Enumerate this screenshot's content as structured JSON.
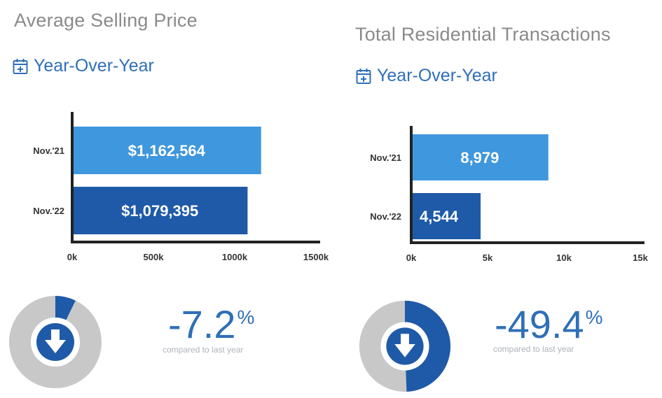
{
  "colors": {
    "bar_light": "#3f97dd",
    "bar_dark": "#1f5aa8",
    "axis": "#222222",
    "donut_bg": "#c8c8c8",
    "accent": "#2f6fb8"
  },
  "panels": [
    {
      "title": "Average Selling Price",
      "yoy_label": "Year-Over-Year",
      "change_value": "-7.2",
      "change_unit": "%",
      "compare_label": "compared to last year",
      "donut_fraction": 0.072
    },
    {
      "title": "Total Residential Transactions",
      "yoy_label": "Year-Over-Year",
      "change_value": "-49.4",
      "change_unit": "%",
      "compare_label": "compared to last year",
      "donut_fraction": 0.494
    }
  ],
  "chart_data": [
    {
      "type": "bar",
      "orientation": "horizontal",
      "title": "Average Selling Price",
      "categories": [
        "Nov.'21",
        "Nov.'22"
      ],
      "values": [
        1162564,
        1079395
      ],
      "data_labels": [
        "$1,162,564",
        "$1,079,395"
      ],
      "xlim": [
        0,
        1500000
      ],
      "xticks": [
        0,
        500000,
        1000000,
        1500000
      ],
      "xtick_labels": [
        "0k",
        "500k",
        "1000k",
        "1500k"
      ],
      "xlabel": "",
      "ylabel": ""
    },
    {
      "type": "bar",
      "orientation": "horizontal",
      "title": "Total Residential Transactions",
      "categories": [
        "Nov.'21",
        "Nov.'22"
      ],
      "values": [
        8979,
        4544
      ],
      "data_labels": [
        "8,979",
        "4,544"
      ],
      "xlim": [
        0,
        15000
      ],
      "xticks": [
        0,
        5000,
        10000,
        15000
      ],
      "xtick_labels": [
        "0k",
        "5k",
        "10k",
        "15k"
      ],
      "xlabel": "",
      "ylabel": ""
    }
  ]
}
